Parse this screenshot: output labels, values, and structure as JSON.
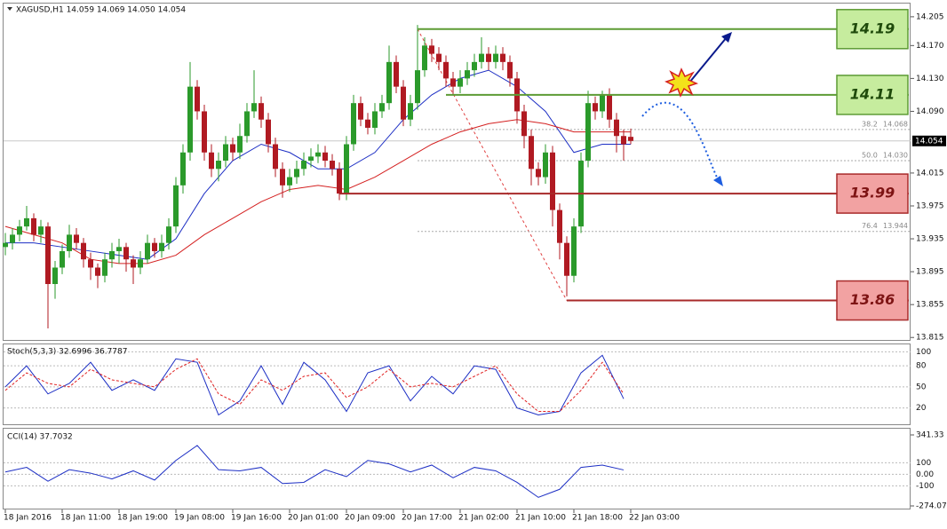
{
  "chart_data": [
    {
      "type": "candlestick",
      "title": "XAGUSD,H1 14.059 14.069 14.050 14.054",
      "categories": [
        "18 Jan 2016",
        null,
        null,
        null,
        null,
        null,
        null,
        null,
        "18 Jan 11:00",
        null,
        null,
        null,
        null,
        null,
        null,
        null,
        "18 Jan 19:00",
        null,
        null,
        null,
        null,
        null,
        null,
        null,
        "19 Jan 08:00",
        null,
        null,
        null,
        null,
        null,
        null,
        null,
        "19 Jan 16:00",
        null,
        null,
        null,
        null,
        null,
        null,
        null,
        "20 Jan 01:00",
        null,
        null,
        null,
        null,
        null,
        null,
        null,
        "20 Jan 09:00",
        null,
        null,
        null,
        null,
        null,
        null,
        null,
        "20 Jan 17:00",
        null,
        null,
        null,
        null,
        null,
        null,
        null,
        "21 Jan 02:00",
        null,
        null,
        null,
        null,
        null,
        null,
        null,
        "21 Jan 10:00",
        null,
        null,
        null,
        null,
        null,
        null,
        null,
        "21 Jan 18:00",
        null,
        null,
        null,
        null,
        null,
        null,
        null,
        "22 Jan 03:00"
      ],
      "ohlc": [
        [
          13.925,
          13.942,
          13.915,
          13.93
        ],
        [
          13.93,
          13.948,
          13.922,
          13.94
        ],
        [
          13.94,
          13.958,
          13.932,
          13.95
        ],
        [
          13.95,
          13.975,
          13.945,
          13.96
        ],
        [
          13.96,
          13.966,
          13.932,
          13.94
        ],
        [
          13.94,
          13.958,
          13.93,
          13.95
        ],
        [
          13.95,
          13.955,
          13.826,
          13.88
        ],
        [
          13.88,
          13.908,
          13.862,
          13.9
        ],
        [
          13.9,
          13.928,
          13.892,
          13.92
        ],
        [
          13.92,
          13.952,
          13.912,
          13.94
        ],
        [
          13.94,
          13.948,
          13.922,
          13.93
        ],
        [
          13.93,
          13.936,
          13.9,
          13.91
        ],
        [
          13.91,
          13.918,
          13.885,
          13.9
        ],
        [
          13.9,
          13.905,
          13.875,
          13.89
        ],
        [
          13.89,
          13.918,
          13.882,
          13.91
        ],
        [
          13.91,
          13.93,
          13.9,
          13.92
        ],
        [
          13.92,
          13.935,
          13.905,
          13.925
        ],
        [
          13.925,
          13.93,
          13.895,
          13.91
        ],
        [
          13.91,
          13.915,
          13.88,
          13.9
        ],
        [
          13.9,
          13.92,
          13.892,
          13.91
        ],
        [
          13.91,
          13.94,
          13.905,
          13.93
        ],
        [
          13.93,
          13.936,
          13.912,
          13.92
        ],
        [
          13.92,
          13.94,
          13.912,
          13.93
        ],
        [
          13.93,
          13.96,
          13.922,
          13.95
        ],
        [
          13.95,
          14.01,
          13.942,
          14.0
        ],
        [
          14.0,
          14.05,
          13.99,
          14.04
        ],
        [
          14.04,
          14.15,
          14.03,
          14.12
        ],
        [
          14.12,
          14.128,
          14.08,
          14.09
        ],
        [
          14.09,
          14.098,
          14.03,
          14.04
        ],
        [
          14.04,
          14.05,
          14.01,
          14.02
        ],
        [
          14.02,
          14.04,
          14.005,
          14.03
        ],
        [
          14.03,
          14.06,
          14.022,
          14.05
        ],
        [
          14.05,
          14.058,
          14.03,
          14.04
        ],
        [
          14.04,
          14.075,
          14.032,
          14.06
        ],
        [
          14.06,
          14.1,
          14.052,
          14.09
        ],
        [
          14.09,
          14.14,
          14.082,
          14.1
        ],
        [
          14.1,
          14.108,
          14.07,
          14.08
        ],
        [
          14.08,
          14.088,
          14.04,
          14.05
        ],
        [
          14.05,
          14.058,
          14.01,
          14.02
        ],
        [
          14.02,
          14.028,
          13.985,
          14.0
        ],
        [
          14.0,
          14.02,
          13.992,
          14.01
        ],
        [
          14.01,
          14.03,
          14.002,
          14.02
        ],
        [
          14.02,
          14.04,
          14.012,
          14.03
        ],
        [
          14.03,
          14.045,
          14.022,
          14.035
        ],
        [
          14.035,
          14.05,
          14.027,
          14.04
        ],
        [
          14.04,
          14.048,
          14.022,
          14.03
        ],
        [
          14.03,
          14.038,
          14.012,
          14.02
        ],
        [
          14.02,
          14.028,
          13.982,
          13.99
        ],
        [
          13.99,
          14.06,
          13.982,
          14.05
        ],
        [
          14.05,
          14.11,
          14.042,
          14.1
        ],
        [
          14.1,
          14.108,
          14.072,
          14.08
        ],
        [
          14.08,
          14.088,
          14.062,
          14.07
        ],
        [
          14.07,
          14.1,
          14.062,
          14.09
        ],
        [
          14.09,
          14.11,
          14.082,
          14.1
        ],
        [
          14.1,
          14.17,
          14.092,
          14.15
        ],
        [
          14.15,
          14.158,
          14.112,
          14.12
        ],
        [
          14.12,
          14.128,
          14.072,
          14.08
        ],
        [
          14.08,
          14.11,
          14.072,
          14.1
        ],
        [
          14.1,
          14.195,
          14.092,
          14.14
        ],
        [
          14.14,
          14.18,
          14.132,
          14.17
        ],
        [
          14.17,
          14.178,
          14.15,
          14.16
        ],
        [
          14.16,
          14.168,
          14.14,
          14.15
        ],
        [
          14.15,
          14.158,
          14.12,
          14.13
        ],
        [
          14.13,
          14.138,
          14.11,
          14.12
        ],
        [
          14.12,
          14.14,
          14.112,
          14.13
        ],
        [
          14.13,
          14.15,
          14.122,
          14.14
        ],
        [
          14.14,
          14.16,
          14.132,
          14.15
        ],
        [
          14.15,
          14.18,
          14.142,
          14.16
        ],
        [
          14.16,
          14.168,
          14.14,
          14.15
        ],
        [
          14.15,
          14.17,
          14.142,
          14.16
        ],
        [
          14.16,
          14.168,
          14.14,
          14.15
        ],
        [
          14.15,
          14.158,
          14.12,
          14.13
        ],
        [
          14.13,
          14.138,
          14.075,
          14.09
        ],
        [
          14.09,
          14.098,
          14.045,
          14.06
        ],
        [
          14.06,
          14.068,
          14.0,
          14.02
        ],
        [
          14.02,
          14.028,
          14.0,
          14.01
        ],
        [
          14.01,
          14.05,
          14.002,
          14.04
        ],
        [
          14.04,
          14.048,
          13.95,
          13.97
        ],
        [
          13.97,
          13.978,
          13.91,
          13.93
        ],
        [
          13.93,
          13.938,
          13.865,
          13.89
        ],
        [
          13.89,
          13.96,
          13.882,
          13.95
        ],
        [
          13.95,
          14.04,
          13.942,
          14.03
        ],
        [
          14.03,
          14.115,
          14.022,
          14.1
        ],
        [
          14.1,
          14.108,
          14.08,
          14.09
        ],
        [
          14.09,
          14.115,
          14.082,
          14.11
        ],
        [
          14.11,
          14.118,
          14.07,
          14.08
        ],
        [
          14.08,
          14.088,
          14.04,
          14.06
        ],
        [
          14.06,
          14.068,
          14.03,
          14.05
        ],
        [
          14.059,
          14.069,
          14.05,
          14.054
        ]
      ],
      "up_color": "#2b9a2b",
      "down_color": "#b01a22",
      "lines": [
        {
          "color": "#1c2ec4",
          "x": [
            0,
            4,
            8,
            12,
            16,
            20,
            24,
            28,
            32,
            36,
            40,
            44,
            48,
            52,
            56,
            60,
            64,
            68,
            72,
            76,
            80,
            84,
            88
          ],
          "values": [
            13.93,
            13.93,
            13.925,
            13.92,
            13.915,
            13.91,
            13.935,
            13.99,
            14.03,
            14.05,
            14.04,
            14.02,
            14.02,
            14.04,
            14.08,
            14.11,
            14.13,
            14.14,
            14.12,
            14.09,
            14.04,
            14.05,
            14.05
          ]
        },
        {
          "color": "#d42020",
          "x": [
            0,
            4,
            8,
            12,
            16,
            20,
            24,
            28,
            32,
            36,
            40,
            44,
            48,
            52,
            56,
            60,
            64,
            68,
            72,
            76,
            80,
            84,
            88
          ],
          "values": [
            13.95,
            13.94,
            13.93,
            13.91,
            13.905,
            13.905,
            13.915,
            13.94,
            13.96,
            13.98,
            13.995,
            14.0,
            13.995,
            14.01,
            14.03,
            14.05,
            14.065,
            14.075,
            14.08,
            14.075,
            14.065,
            14.065,
            14.065
          ]
        }
      ],
      "ylim": [
        13.812,
        14.22
      ],
      "yticks": [
        14.205,
        {
          "value": 14.17,
          "label": "14.170"
        },
        {
          "value": 14.13,
          "label": "14.130"
        },
        {
          "value": 14.09,
          "label": "14.090"
        },
        14.015,
        13.975,
        13.935,
        13.895,
        13.855,
        13.815
      ],
      "current_price": 14.054,
      "levels": [
        {
          "value": 14.19,
          "start": 58,
          "color": "#5d9b34",
          "fill": "#c6ec9e",
          "text_color": "#1f4a0b"
        },
        {
          "value": 14.11,
          "start": 62,
          "color": "#5d9b34",
          "fill": "#c6ec9e",
          "text_color": "#1f4a0b"
        },
        {
          "value": 13.99,
          "start": 47,
          "color": "#a82a2a",
          "fill": "#f2a2a2",
          "text_color": "#7e1414"
        },
        {
          "value": 13.86,
          "start": 79,
          "color": "#a82a2a",
          "fill": "#f2a2a2",
          "text_color": "#7e1414"
        }
      ],
      "fib_line": {
        "x": [
          58,
          79
        ],
        "values": [
          14.19,
          13.86
        ]
      },
      "fib": [
        {
          "ratio": 38.2,
          "price": 14.068
        },
        {
          "ratio": {
            "value": 50,
            "label": "50.0"
          },
          "price": {
            "value": 14.03,
            "label": "14.030"
          }
        },
        {
          "ratio": 76.4,
          "price": 13.944
        }
      ]
    },
    {
      "type": "line",
      "title": "Stoch(5,3,3) 32.6996 36.7787",
      "x": [
        0,
        3,
        6,
        9,
        12,
        15,
        18,
        21,
        24,
        27,
        30,
        33,
        36,
        39,
        42,
        45,
        48,
        51,
        54,
        57,
        60,
        63,
        66,
        69,
        72,
        75,
        78,
        81,
        84,
        87
      ],
      "series": [
        {
          "color": "#1c2ec4",
          "style": "solid",
          "values": [
            50,
            80,
            40,
            55,
            85,
            45,
            60,
            45,
            90,
            85,
            10,
            30,
            80,
            25,
            85,
            60,
            15,
            70,
            80,
            30,
            65,
            40,
            80,
            75,
            20,
            10,
            15,
            70,
            95,
            33
          ]
        },
        {
          "color": "#e02020",
          "style": "dashed",
          "values": [
            45,
            70,
            55,
            50,
            75,
            60,
            55,
            50,
            75,
            90,
            40,
            25,
            60,
            45,
            65,
            70,
            35,
            50,
            75,
            50,
            55,
            50,
            65,
            80,
            40,
            15,
            15,
            45,
            85,
            40
          ]
        }
      ],
      "ylim": [
        -2,
        108
      ],
      "yticks": [
        100,
        80,
        50,
        20
      ]
    },
    {
      "type": "line",
      "title": "CCI(14) 37.7032",
      "x": [
        0,
        3,
        6,
        9,
        12,
        15,
        18,
        21,
        24,
        27,
        30,
        33,
        36,
        39,
        42,
        45,
        48,
        51,
        54,
        57,
        60,
        63,
        66,
        69,
        72,
        75,
        78,
        81,
        84,
        87
      ],
      "series": [
        {
          "color": "#1c2ec4",
          "style": "solid",
          "values": [
            20,
            60,
            -60,
            40,
            10,
            -40,
            30,
            -50,
            120,
            250,
            40,
            30,
            60,
            -80,
            -70,
            40,
            -20,
            120,
            90,
            20,
            80,
            -30,
            60,
            30,
            -70,
            -200,
            -130,
            60,
            80,
            38
          ]
        }
      ],
      "ylim": [
        -274.071,
        341.33
      ],
      "yticks": [
        341.33,
        100,
        {
          "value": 0,
          "label": "0.00"
        },
        -100,
        -274.071
      ]
    }
  ]
}
